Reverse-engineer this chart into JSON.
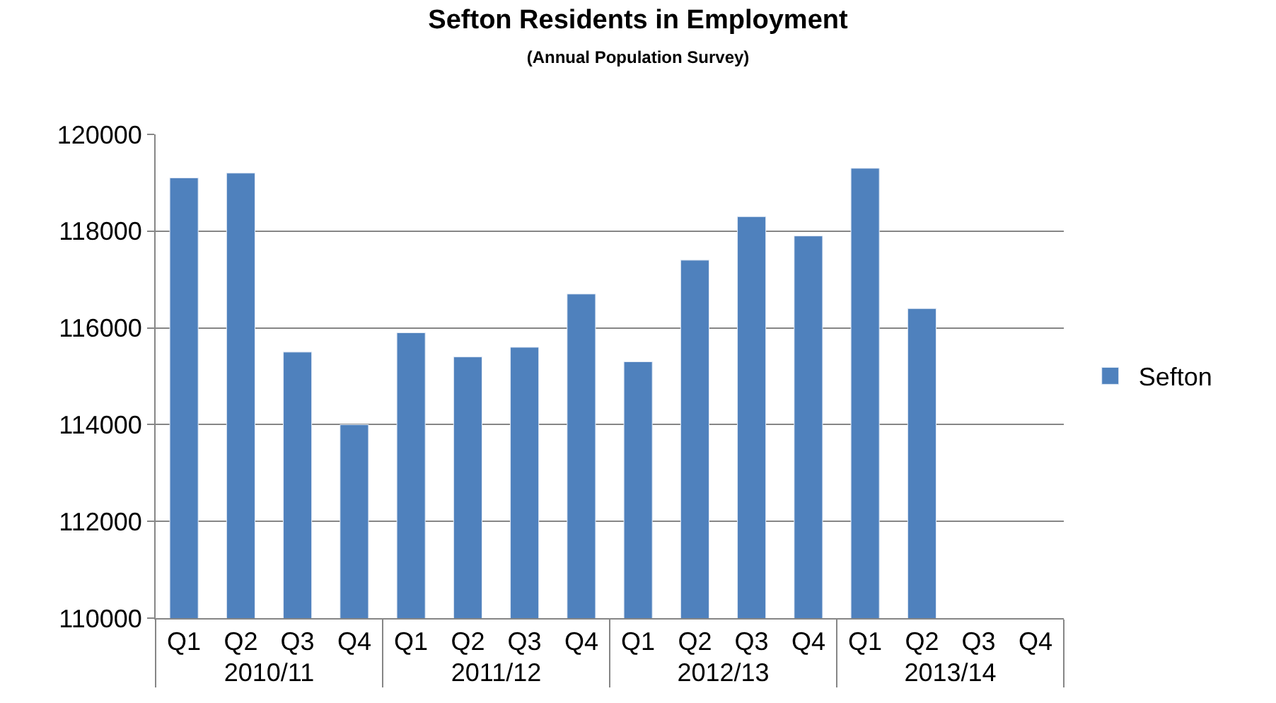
{
  "chart_data": {
    "type": "bar",
    "title": "Sefton Residents in Employment",
    "subtitle": "(Annual Population Survey)",
    "categories": [
      "Q1",
      "Q2",
      "Q3",
      "Q4",
      "Q1",
      "Q2",
      "Q3",
      "Q4",
      "Q1",
      "Q2",
      "Q3",
      "Q4",
      "Q1",
      "Q2",
      "Q3",
      "Q4"
    ],
    "annotations": [
      "2010/11",
      "2011/12",
      "2012/13",
      "2013/14"
    ],
    "series": [
      {
        "name": "Sefton",
        "color": "#4f81bd",
        "values": [
          119100,
          119200,
          115500,
          114000,
          115900,
          115400,
          115600,
          116700,
          115300,
          117400,
          118300,
          117900,
          119300,
          116400,
          null,
          null
        ]
      }
    ],
    "ylim": [
      110000,
      120000
    ],
    "yticks": [
      110000,
      112000,
      114000,
      116000,
      118000,
      120000
    ],
    "grid": "y",
    "legend": "right"
  }
}
